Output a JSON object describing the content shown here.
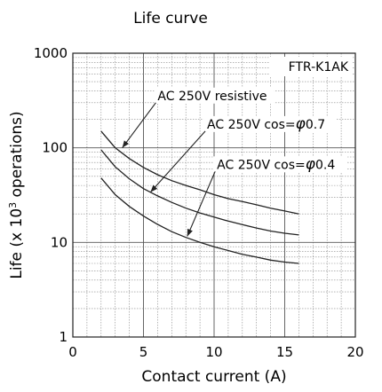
{
  "chart_data": {
    "type": "line",
    "title": "Life curve",
    "xlabel": "Contact current (A)",
    "ylabel": "Life (x 10",
    "ylabel_sup": "3",
    "ylabel_tail": " operations)",
    "model_label": "FTR-K1AK",
    "xlim": [
      0,
      20
    ],
    "ylim": [
      1,
      1000
    ],
    "y_scale": "log",
    "grid": true,
    "x_ticks": [
      "0",
      "5",
      "10",
      "15",
      "20"
    ],
    "y_ticks": [
      "1",
      "10",
      "100",
      "1000"
    ],
    "series": [
      {
        "name": "AC 250V resistive",
        "x": [
          2,
          3,
          4,
          5,
          6,
          7,
          8,
          9,
          10,
          11,
          12,
          13,
          14,
          15,
          16
        ],
        "y": [
          150,
          100,
          77,
          62,
          52,
          45,
          40,
          36,
          32,
          29,
          27,
          25,
          23,
          21.5,
          20
        ]
      },
      {
        "name": "AC 250V cos=φ0.7",
        "label_text": "AC 250V cos=",
        "label_phi": "φ",
        "label_val": "0.7",
        "x": [
          2,
          3,
          4,
          5,
          6,
          7,
          8,
          9,
          10,
          11,
          12,
          13,
          14,
          15,
          16
        ],
        "y": [
          95,
          63,
          47,
          37,
          31,
          26.5,
          23,
          20.5,
          18.5,
          16.8,
          15.4,
          14.2,
          13.2,
          12.5,
          12
        ]
      },
      {
        "name": "AC 250V cos=φ0.4",
        "label_text": "AC 250V cos=",
        "label_phi": "φ",
        "label_val": "0.4",
        "x": [
          2,
          3,
          4,
          5,
          6,
          7,
          8,
          9,
          10,
          11,
          12,
          13,
          14,
          15,
          16
        ],
        "y": [
          48,
          32,
          24,
          19,
          15.5,
          13,
          11.3,
          10,
          9,
          8.2,
          7.5,
          7,
          6.5,
          6.2,
          6
        ]
      }
    ],
    "annotations": [
      {
        "series": 0,
        "text_x": 6,
        "text_y": 320,
        "arrow_to_x": 3.5,
        "arrow_to_y": 100
      },
      {
        "series": 1,
        "text_x": 9.5,
        "text_y": 160,
        "arrow_to_x": 5.5,
        "arrow_to_y": 34
      },
      {
        "series": 2,
        "text_x": 10.2,
        "text_y": 60,
        "arrow_to_x": 8.1,
        "arrow_to_y": 11.6
      }
    ]
  }
}
